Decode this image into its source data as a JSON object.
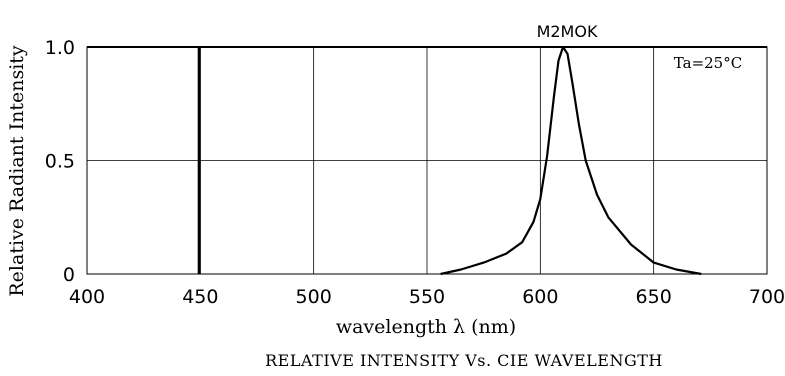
{
  "chart_data": {
    "type": "line",
    "title": "RELATIVE INTENSITY Vs. CIE WAVELENGTH",
    "xlabel": "wavelength λ (nm)",
    "ylabel": "Relative Radiant Intensity",
    "xlim": [
      400,
      700
    ],
    "ylim": [
      0,
      1.0
    ],
    "x_ticks": [
      400,
      450,
      500,
      550,
      600,
      650,
      700
    ],
    "x_tick_labels": [
      "400",
      "450",
      "500",
      "550",
      "600",
      "650",
      "700"
    ],
    "y_ticks": [
      0,
      0.5,
      1.0
    ],
    "y_tick_labels": [
      "0",
      "0.5",
      "1.0"
    ],
    "grid": true,
    "annotations": [
      "M2MOK",
      "Ta=25°C"
    ],
    "reference_line_x": 449.5,
    "series": [
      {
        "x": [
          556,
          565,
          575,
          585,
          592,
          597,
          600,
          603,
          606,
          608,
          610,
          612,
          614,
          617,
          620,
          625,
          630,
          640,
          650,
          660,
          671
        ],
        "y": [
          0,
          0.02,
          0.05,
          0.09,
          0.14,
          0.23,
          0.33,
          0.52,
          0.78,
          0.94,
          1.0,
          0.97,
          0.85,
          0.66,
          0.5,
          0.35,
          0.25,
          0.13,
          0.05,
          0.02,
          0
        ]
      }
    ]
  }
}
